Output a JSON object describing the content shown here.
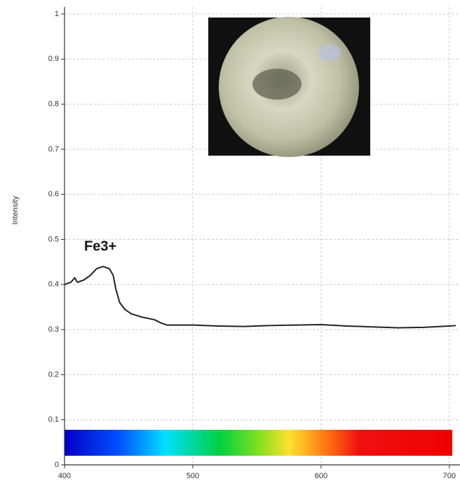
{
  "chart_data": {
    "type": "line",
    "y_label": "Intensity",
    "annotation": "Fe3+",
    "x": [
      400,
      405,
      408,
      410,
      415,
      420,
      425,
      430,
      435,
      438,
      440,
      443,
      447,
      452,
      460,
      470,
      475,
      480,
      490,
      500,
      520,
      540,
      560,
      580,
      600,
      620,
      640,
      660,
      680,
      700,
      705
    ],
    "series": [
      {
        "name": "Intensity",
        "color": "#222222",
        "values": [
          0.4,
          0.405,
          0.415,
          0.405,
          0.41,
          0.42,
          0.435,
          0.44,
          0.435,
          0.42,
          0.39,
          0.36,
          0.345,
          0.335,
          0.328,
          0.322,
          0.315,
          0.31,
          0.31,
          0.31,
          0.308,
          0.307,
          0.309,
          0.31,
          0.311,
          0.308,
          0.306,
          0.304,
          0.305,
          0.308,
          0.309
        ]
      }
    ],
    "xlim": [
      400,
      705
    ],
    "xticks": [
      400,
      500,
      600,
      700
    ],
    "ylim": [
      0,
      1
    ],
    "yticks": [
      0,
      0.1,
      0.2,
      0.3,
      0.4,
      0.5,
      0.6,
      0.7,
      0.8,
      0.9,
      1
    ],
    "grid": true
  }
}
